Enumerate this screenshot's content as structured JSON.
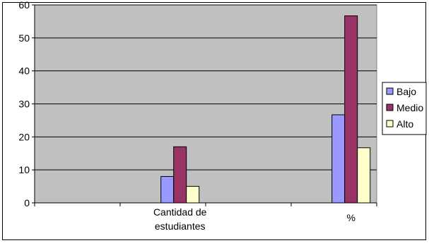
{
  "chart_data": {
    "type": "bar",
    "categories": [
      "Cantidad de estudiantes",
      "%"
    ],
    "category_label_lines": [
      [
        "Cantidad de",
        "estudiantes"
      ],
      [
        "%"
      ]
    ],
    "series": [
      {
        "name": "Bajo",
        "values": [
          8,
          26.7
        ],
        "color": "#9999ff"
      },
      {
        "name": "Medio",
        "values": [
          17,
          56.7
        ],
        "color": "#993366"
      },
      {
        "name": "Alto",
        "values": [
          5,
          16.7
        ],
        "color": "#ffffcc"
      }
    ],
    "ylim": [
      0,
      60
    ],
    "yticks": [
      0,
      10,
      20,
      30,
      40,
      50,
      60
    ],
    "grid": true,
    "legend": "right",
    "plot_background": "#c0c0c0"
  }
}
